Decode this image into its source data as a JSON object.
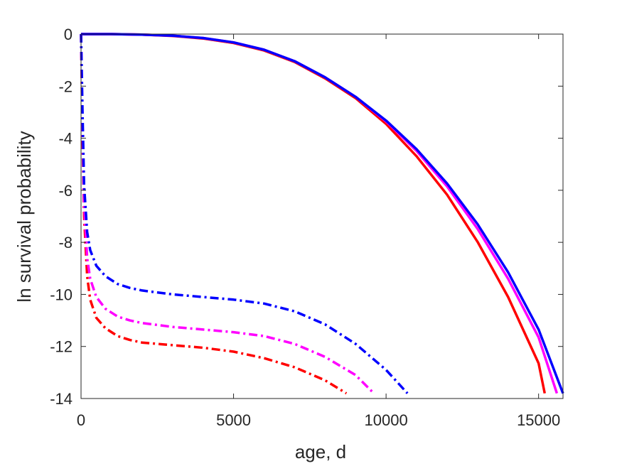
{
  "chart_data": {
    "type": "line",
    "title": "",
    "xlabel": "age, d",
    "ylabel": "ln survival probability",
    "xlim": [
      0,
      15800
    ],
    "ylim": [
      -14,
      0
    ],
    "xticks": [
      0,
      5000,
      10000,
      15000
    ],
    "yticks": [
      0,
      -2,
      -4,
      -6,
      -8,
      -10,
      -12,
      -14
    ],
    "xtick_labels": [
      "0",
      "5000",
      "10000",
      "15000"
    ],
    "ytick_labels": [
      "0",
      "-2",
      "-4",
      "-6",
      "-8",
      "-10",
      "-12",
      "-14"
    ],
    "grid": false,
    "legend": "none",
    "series": [
      {
        "color": "#ff0000",
        "style": "solid",
        "x": [
          0,
          1000,
          2000,
          3000,
          4000,
          5000,
          6000,
          7000,
          8000,
          9000,
          10000,
          11000,
          12000,
          13000,
          14000,
          15000,
          15200
        ],
        "y": [
          0,
          0,
          -0.02,
          -0.07,
          -0.17,
          -0.34,
          -0.63,
          -1.07,
          -1.7,
          -2.46,
          -3.45,
          -4.69,
          -6.17,
          -7.98,
          -10.1,
          -12.65,
          -13.8
        ]
      },
      {
        "color": "#ff00ff",
        "style": "solid",
        "x": [
          0,
          1000,
          2000,
          3000,
          4000,
          5000,
          6000,
          7000,
          8000,
          9000,
          10000,
          11000,
          12000,
          13000,
          14000,
          15000,
          15600
        ],
        "y": [
          0,
          0,
          -0.02,
          -0.06,
          -0.15,
          -0.32,
          -0.6,
          -1.04,
          -1.66,
          -2.41,
          -3.35,
          -4.49,
          -5.85,
          -7.48,
          -9.4,
          -11.65,
          -13.8
        ]
      },
      {
        "color": "#0000ff",
        "style": "solid",
        "x": [
          0,
          1000,
          2000,
          3000,
          4000,
          5000,
          6000,
          7000,
          8000,
          9000,
          10000,
          11000,
          12000,
          13000,
          14000,
          15000,
          15800
        ],
        "y": [
          0,
          0,
          -0.02,
          -0.06,
          -0.15,
          -0.32,
          -0.6,
          -1.04,
          -1.66,
          -2.41,
          -3.32,
          -4.42,
          -5.74,
          -7.3,
          -9.15,
          -11.35,
          -13.8
        ]
      },
      {
        "color": "#ff0000",
        "style": "dashdot",
        "x": [
          0,
          50,
          100,
          200,
          300,
          500,
          800,
          1200,
          1600,
          2000,
          3000,
          4000,
          5000,
          6000,
          7000,
          8000,
          8700
        ],
        "y": [
          0,
          -4,
          -7,
          -9.3,
          -10.2,
          -10.9,
          -11.3,
          -11.6,
          -11.75,
          -11.85,
          -11.95,
          -12.05,
          -12.2,
          -12.45,
          -12.8,
          -13.3,
          -13.8
        ]
      },
      {
        "color": "#ff00ff",
        "style": "dashdot",
        "x": [
          0,
          50,
          100,
          200,
          300,
          500,
          800,
          1200,
          1600,
          2000,
          3000,
          4000,
          5000,
          6000,
          7000,
          8000,
          9000,
          9600
        ],
        "y": [
          0,
          -3.5,
          -6.5,
          -8.6,
          -9.4,
          -10.1,
          -10.55,
          -10.85,
          -11.0,
          -11.1,
          -11.25,
          -11.35,
          -11.45,
          -11.6,
          -11.9,
          -12.4,
          -13.1,
          -13.8
        ]
      },
      {
        "color": "#0000ff",
        "style": "dashdot",
        "x": [
          0,
          50,
          100,
          200,
          300,
          500,
          800,
          1200,
          1600,
          2000,
          3000,
          4000,
          5000,
          6000,
          7000,
          8000,
          9000,
          10000,
          10700
        ],
        "y": [
          0,
          -3,
          -5.8,
          -7.6,
          -8.3,
          -8.9,
          -9.3,
          -9.6,
          -9.75,
          -9.85,
          -10.0,
          -10.1,
          -10.2,
          -10.35,
          -10.65,
          -11.15,
          -11.9,
          -12.9,
          -13.8
        ]
      }
    ]
  }
}
